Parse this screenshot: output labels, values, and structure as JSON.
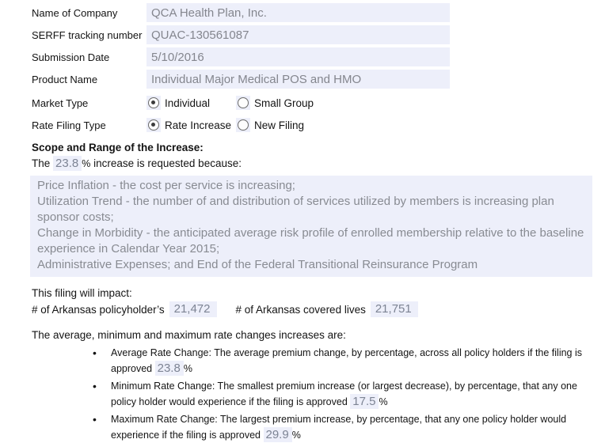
{
  "colors": {
    "field_bg": "#edeffa",
    "value_text": "#84868e",
    "number_text": "#7d8494"
  },
  "form": {
    "rows": [
      {
        "label": "Name of Company",
        "value": "QCA Health Plan, Inc."
      },
      {
        "label": "SERFF tracking number",
        "value": "QUAC-130561087"
      },
      {
        "label": "Submission Date",
        "value": "5/10/2016"
      },
      {
        "label": "Product Name",
        "value": "Individual Major Medical POS and HMO"
      }
    ],
    "market_type": {
      "label": "Market Type",
      "options": [
        {
          "label": "Individual",
          "selected": true
        },
        {
          "label": "Small Group",
          "selected": false
        }
      ]
    },
    "rate_filing_type": {
      "label": "Rate Filing Type",
      "options": [
        {
          "label": "Rate Increase",
          "selected": true
        },
        {
          "label": "New Filing",
          "selected": false
        }
      ]
    }
  },
  "scope": {
    "heading": "Scope and Range of the Increase:",
    "sentence_prefix": "The",
    "increase_value": "23.8",
    "percent_sign": "%",
    "sentence_suffix": " increase is requested because:",
    "reasons_text": "Price Inflation - the cost per service is increasing;\nUtilization Trend - the number of and distribution of services utilized by members is increasing plan sponsor costs;\nChange in Morbidity - the anticipated average risk profile of enrolled membership relative to the baseline experience in Calendar Year 2015;\nAdministrative Expenses; and End of the Federal Transitional Reinsurance Program"
  },
  "impact": {
    "intro": "This filing will impact:",
    "policyholders_label": "# of Arkansas policyholder’s",
    "policyholders_value": "21,472",
    "covered_lives_label": "# of Arkansas covered lives",
    "covered_lives_value": "21,751"
  },
  "rates": {
    "intro": "The average, minimum and maximum rate changes increases are:",
    "items": [
      {
        "text": "Average Rate Change: The average premium change, by percentage, across all policy holders if the filing is approved",
        "value": "23.8",
        "unit": "%"
      },
      {
        "text": "Minimum Rate Change: The smallest premium increase (or largest decrease), by percentage, that any one policy holder would experience if the filing is approved",
        "value": "17.5",
        "unit": "%"
      },
      {
        "text": "Maximum Rate Change: The largest premium increase, by percentage, that any one policy holder would experience if the filing is approved",
        "value": "29.9",
        "unit": "%"
      }
    ]
  }
}
